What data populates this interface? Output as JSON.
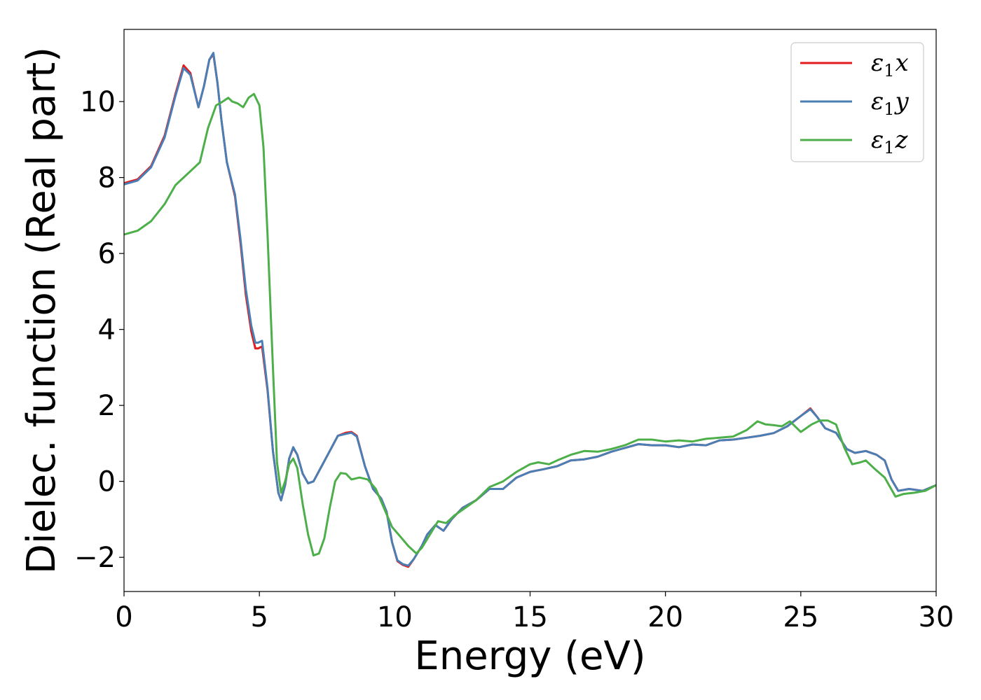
{
  "chart_data": {
    "type": "line",
    "title": "",
    "xlabel": "Energy (eV)",
    "ylabel": "Dielec. function (Real part)",
    "xlim": [
      0,
      30
    ],
    "ylim": [
      -2.9,
      11.9
    ],
    "xticks": [
      0,
      5,
      10,
      15,
      20,
      25,
      30
    ],
    "xtick_labels": [
      "0",
      "5",
      "10",
      "15",
      "20",
      "25",
      "30"
    ],
    "yticks": [
      -2,
      0,
      2,
      4,
      6,
      8,
      10
    ],
    "ytick_labels": [
      "−2",
      "0",
      "2",
      "4",
      "6",
      "8",
      "10"
    ],
    "grid": false,
    "legend_position": "top-right",
    "series": [
      {
        "name": "ε1x",
        "legend_main": "ε",
        "legend_sub": "1",
        "legend_var": "x",
        "color": "#e41a1c",
        "points": [
          [
            0,
            7.85
          ],
          [
            0.5,
            7.95
          ],
          [
            1.0,
            8.3
          ],
          [
            1.5,
            9.1
          ],
          [
            1.9,
            10.2
          ],
          [
            2.2,
            10.95
          ],
          [
            2.45,
            10.75
          ],
          [
            2.6,
            10.3
          ],
          [
            2.75,
            9.85
          ],
          [
            2.95,
            10.4
          ],
          [
            3.15,
            11.1
          ],
          [
            3.3,
            11.25
          ],
          [
            3.45,
            10.5
          ],
          [
            3.6,
            9.5
          ],
          [
            3.8,
            8.4
          ],
          [
            4.1,
            7.5
          ],
          [
            4.3,
            6.3
          ],
          [
            4.5,
            4.9
          ],
          [
            4.7,
            3.95
          ],
          [
            4.85,
            3.5
          ],
          [
            4.95,
            3.5
          ],
          [
            5.1,
            3.55
          ],
          [
            5.3,
            2.4
          ],
          [
            5.5,
            0.8
          ],
          [
            5.7,
            -0.3
          ],
          [
            5.8,
            -0.5
          ],
          [
            5.95,
            -0.1
          ],
          [
            6.1,
            0.6
          ],
          [
            6.25,
            0.88
          ],
          [
            6.4,
            0.7
          ],
          [
            6.6,
            0.2
          ],
          [
            6.8,
            -0.05
          ],
          [
            7.0,
            0.0
          ],
          [
            7.3,
            0.4
          ],
          [
            7.6,
            0.8
          ],
          [
            7.9,
            1.2
          ],
          [
            8.2,
            1.28
          ],
          [
            8.4,
            1.3
          ],
          [
            8.6,
            1.2
          ],
          [
            8.9,
            0.4
          ],
          [
            9.2,
            -0.2
          ],
          [
            9.5,
            -0.45
          ],
          [
            9.7,
            -0.8
          ],
          [
            9.9,
            -1.6
          ],
          [
            10.1,
            -2.1
          ],
          [
            10.3,
            -2.2
          ],
          [
            10.5,
            -2.25
          ],
          [
            10.7,
            -2.05
          ],
          [
            11.0,
            -1.7
          ],
          [
            11.2,
            -1.4
          ],
          [
            11.5,
            -1.15
          ],
          [
            11.8,
            -1.3
          ],
          [
            12.1,
            -1.0
          ],
          [
            12.5,
            -0.7
          ],
          [
            13.0,
            -0.5
          ],
          [
            13.5,
            -0.2
          ],
          [
            14.0,
            -0.2
          ],
          [
            14.5,
            0.1
          ],
          [
            15.0,
            0.25
          ],
          [
            15.5,
            0.32
          ],
          [
            16.0,
            0.4
          ],
          [
            16.5,
            0.55
          ],
          [
            17.0,
            0.58
          ],
          [
            17.5,
            0.65
          ],
          [
            18.0,
            0.78
          ],
          [
            18.5,
            0.88
          ],
          [
            19.0,
            0.98
          ],
          [
            19.5,
            0.95
          ],
          [
            20.0,
            0.95
          ],
          [
            20.5,
            0.9
          ],
          [
            21.0,
            0.97
          ],
          [
            21.5,
            0.95
          ],
          [
            22.0,
            1.08
          ],
          [
            22.5,
            1.1
          ],
          [
            23.0,
            1.15
          ],
          [
            23.5,
            1.2
          ],
          [
            24.0,
            1.27
          ],
          [
            24.5,
            1.45
          ],
          [
            25.0,
            1.72
          ],
          [
            25.35,
            1.92
          ],
          [
            25.6,
            1.7
          ],
          [
            25.9,
            1.4
          ],
          [
            26.3,
            1.28
          ],
          [
            26.7,
            0.85
          ],
          [
            27.0,
            0.75
          ],
          [
            27.4,
            0.8
          ],
          [
            27.8,
            0.7
          ],
          [
            28.1,
            0.55
          ],
          [
            28.35,
            0.05
          ],
          [
            28.6,
            -0.25
          ],
          [
            29.0,
            -0.2
          ],
          [
            29.5,
            -0.25
          ],
          [
            30.0,
            -0.1
          ]
        ]
      },
      {
        "name": "ε1y",
        "legend_main": "ε",
        "legend_sub": "1",
        "legend_var": "y",
        "color": "#4a7fb5",
        "points": [
          [
            0,
            7.82
          ],
          [
            0.5,
            7.92
          ],
          [
            1.0,
            8.27
          ],
          [
            1.5,
            9.05
          ],
          [
            1.9,
            10.15
          ],
          [
            2.2,
            10.88
          ],
          [
            2.45,
            10.7
          ],
          [
            2.6,
            10.28
          ],
          [
            2.75,
            9.85
          ],
          [
            2.95,
            10.4
          ],
          [
            3.15,
            11.1
          ],
          [
            3.3,
            11.28
          ],
          [
            3.45,
            10.5
          ],
          [
            3.6,
            9.5
          ],
          [
            3.8,
            8.4
          ],
          [
            4.1,
            7.55
          ],
          [
            4.3,
            6.4
          ],
          [
            4.5,
            5.05
          ],
          [
            4.7,
            4.1
          ],
          [
            4.85,
            3.65
          ],
          [
            4.95,
            3.65
          ],
          [
            5.1,
            3.7
          ],
          [
            5.3,
            2.45
          ],
          [
            5.5,
            0.8
          ],
          [
            5.7,
            -0.3
          ],
          [
            5.8,
            -0.5
          ],
          [
            5.95,
            -0.1
          ],
          [
            6.1,
            0.6
          ],
          [
            6.25,
            0.9
          ],
          [
            6.4,
            0.7
          ],
          [
            6.6,
            0.2
          ],
          [
            6.8,
            -0.05
          ],
          [
            7.0,
            0.0
          ],
          [
            7.3,
            0.4
          ],
          [
            7.6,
            0.8
          ],
          [
            7.9,
            1.2
          ],
          [
            8.2,
            1.25
          ],
          [
            8.4,
            1.28
          ],
          [
            8.6,
            1.18
          ],
          [
            8.9,
            0.4
          ],
          [
            9.2,
            -0.2
          ],
          [
            9.5,
            -0.45
          ],
          [
            9.7,
            -0.8
          ],
          [
            9.9,
            -1.6
          ],
          [
            10.1,
            -2.08
          ],
          [
            10.3,
            -2.18
          ],
          [
            10.5,
            -2.22
          ],
          [
            10.7,
            -2.05
          ],
          [
            11.0,
            -1.7
          ],
          [
            11.2,
            -1.4
          ],
          [
            11.5,
            -1.15
          ],
          [
            11.8,
            -1.3
          ],
          [
            12.1,
            -1.0
          ],
          [
            12.5,
            -0.7
          ],
          [
            13.0,
            -0.5
          ],
          [
            13.5,
            -0.2
          ],
          [
            14.0,
            -0.2
          ],
          [
            14.5,
            0.1
          ],
          [
            15.0,
            0.25
          ],
          [
            15.5,
            0.32
          ],
          [
            16.0,
            0.4
          ],
          [
            16.5,
            0.55
          ],
          [
            17.0,
            0.58
          ],
          [
            17.5,
            0.65
          ],
          [
            18.0,
            0.78
          ],
          [
            18.5,
            0.88
          ],
          [
            19.0,
            0.98
          ],
          [
            19.5,
            0.95
          ],
          [
            20.0,
            0.95
          ],
          [
            20.5,
            0.9
          ],
          [
            21.0,
            0.97
          ],
          [
            21.5,
            0.95
          ],
          [
            22.0,
            1.08
          ],
          [
            22.5,
            1.1
          ],
          [
            23.0,
            1.15
          ],
          [
            23.5,
            1.2
          ],
          [
            24.0,
            1.27
          ],
          [
            24.5,
            1.45
          ],
          [
            25.0,
            1.72
          ],
          [
            25.35,
            1.9
          ],
          [
            25.6,
            1.7
          ],
          [
            25.9,
            1.4
          ],
          [
            26.3,
            1.28
          ],
          [
            26.7,
            0.85
          ],
          [
            27.0,
            0.75
          ],
          [
            27.4,
            0.8
          ],
          [
            27.8,
            0.7
          ],
          [
            28.1,
            0.55
          ],
          [
            28.35,
            0.05
          ],
          [
            28.6,
            -0.25
          ],
          [
            29.0,
            -0.2
          ],
          [
            29.5,
            -0.25
          ],
          [
            30.0,
            -0.1
          ]
        ]
      },
      {
        "name": "ε1z",
        "legend_main": "ε",
        "legend_sub": "1",
        "legend_var": "z",
        "color": "#4daf4a",
        "points": [
          [
            0,
            6.5
          ],
          [
            0.5,
            6.6
          ],
          [
            1.0,
            6.85
          ],
          [
            1.5,
            7.3
          ],
          [
            1.9,
            7.8
          ],
          [
            2.2,
            8.0
          ],
          [
            2.5,
            8.2
          ],
          [
            2.8,
            8.4
          ],
          [
            3.1,
            9.3
          ],
          [
            3.4,
            9.9
          ],
          [
            3.6,
            9.98
          ],
          [
            3.85,
            10.1
          ],
          [
            4.0,
            10.0
          ],
          [
            4.2,
            9.95
          ],
          [
            4.4,
            9.85
          ],
          [
            4.6,
            10.1
          ],
          [
            4.8,
            10.2
          ],
          [
            5.0,
            9.9
          ],
          [
            5.15,
            8.8
          ],
          [
            5.3,
            6.5
          ],
          [
            5.5,
            3.0
          ],
          [
            5.65,
            0.5
          ],
          [
            5.8,
            -0.3
          ],
          [
            5.95,
            0.0
          ],
          [
            6.1,
            0.45
          ],
          [
            6.25,
            0.6
          ],
          [
            6.4,
            0.35
          ],
          [
            6.6,
            -0.6
          ],
          [
            6.8,
            -1.4
          ],
          [
            7.0,
            -1.95
          ],
          [
            7.2,
            -1.9
          ],
          [
            7.4,
            -1.5
          ],
          [
            7.6,
            -0.7
          ],
          [
            7.8,
            0.0
          ],
          [
            8.0,
            0.22
          ],
          [
            8.2,
            0.2
          ],
          [
            8.4,
            0.05
          ],
          [
            8.7,
            0.1
          ],
          [
            9.0,
            0.05
          ],
          [
            9.3,
            -0.2
          ],
          [
            9.6,
            -0.7
          ],
          [
            9.9,
            -1.2
          ],
          [
            10.2,
            -1.45
          ],
          [
            10.5,
            -1.7
          ],
          [
            10.8,
            -1.9
          ],
          [
            11.0,
            -1.75
          ],
          [
            11.3,
            -1.4
          ],
          [
            11.6,
            -1.05
          ],
          [
            11.9,
            -1.1
          ],
          [
            12.2,
            -0.9
          ],
          [
            12.6,
            -0.7
          ],
          [
            13.0,
            -0.5
          ],
          [
            13.5,
            -0.15
          ],
          [
            14.0,
            0.0
          ],
          [
            14.5,
            0.25
          ],
          [
            15.0,
            0.45
          ],
          [
            15.3,
            0.5
          ],
          [
            15.7,
            0.45
          ],
          [
            16.0,
            0.55
          ],
          [
            16.5,
            0.7
          ],
          [
            17.0,
            0.8
          ],
          [
            17.5,
            0.78
          ],
          [
            18.0,
            0.85
          ],
          [
            18.5,
            0.95
          ],
          [
            19.0,
            1.1
          ],
          [
            19.5,
            1.1
          ],
          [
            20.0,
            1.05
          ],
          [
            20.5,
            1.08
          ],
          [
            21.0,
            1.05
          ],
          [
            21.5,
            1.12
          ],
          [
            22.0,
            1.15
          ],
          [
            22.5,
            1.18
          ],
          [
            23.0,
            1.35
          ],
          [
            23.4,
            1.58
          ],
          [
            23.7,
            1.5
          ],
          [
            24.0,
            1.48
          ],
          [
            24.3,
            1.45
          ],
          [
            24.6,
            1.58
          ],
          [
            25.0,
            1.3
          ],
          [
            25.4,
            1.5
          ],
          [
            25.7,
            1.6
          ],
          [
            26.0,
            1.6
          ],
          [
            26.3,
            1.5
          ],
          [
            26.6,
            0.9
          ],
          [
            26.9,
            0.45
          ],
          [
            27.2,
            0.5
          ],
          [
            27.4,
            0.55
          ],
          [
            27.7,
            0.35
          ],
          [
            28.1,
            0.1
          ],
          [
            28.5,
            -0.4
          ],
          [
            28.8,
            -0.33
          ],
          [
            29.2,
            -0.3
          ],
          [
            29.6,
            -0.25
          ],
          [
            30.0,
            -0.1
          ]
        ]
      }
    ]
  }
}
